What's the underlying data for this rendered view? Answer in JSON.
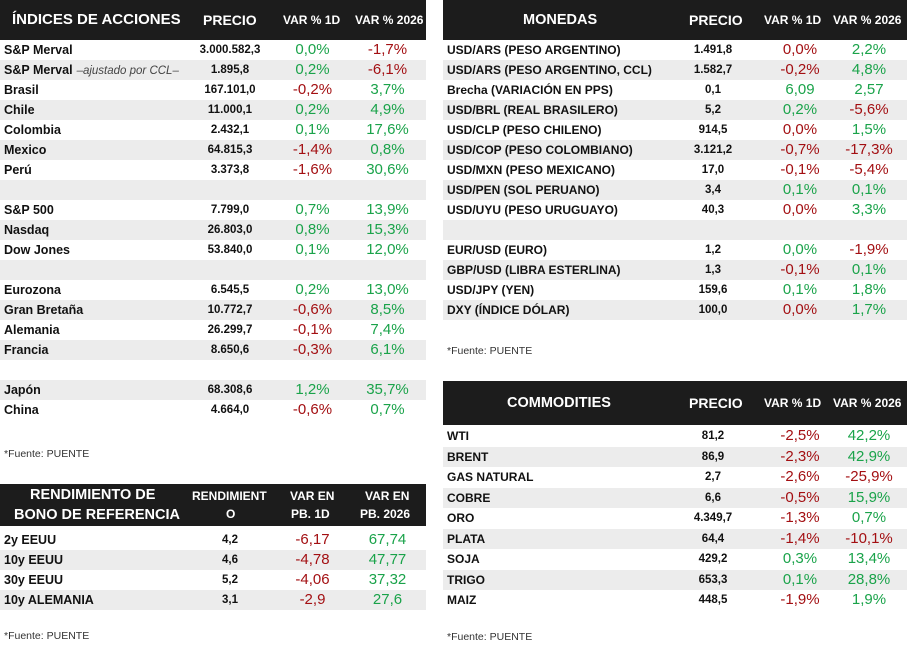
{
  "indices": {
    "headers": [
      "ÍNDICES DE ACCIONES",
      "PRECIO",
      "VAR % 1D",
      "VAR % 2026"
    ],
    "rows": [
      {
        "name": "S&P Merval",
        "note": "",
        "price": "3.000.582,3",
        "d1": "0,0%",
        "ytd": "-1,7%",
        "d1_sign": "pos",
        "ytd_sign": "neg"
      },
      {
        "name": "S&P Merval",
        "note": "–ajustado por CCL–",
        "price": "1.895,8",
        "d1": "0,2%",
        "ytd": "-6,1%",
        "d1_sign": "pos",
        "ytd_sign": "neg"
      },
      {
        "name": "Brasil",
        "note": "",
        "price": "167.101,0",
        "d1": "-0,2%",
        "ytd": "3,7%",
        "d1_sign": "neg",
        "ytd_sign": "pos"
      },
      {
        "name": "Chile",
        "note": "",
        "price": "11.000,1",
        "d1": "0,2%",
        "ytd": "4,9%",
        "d1_sign": "pos",
        "ytd_sign": "pos"
      },
      {
        "name": "Colombia",
        "note": "",
        "price": "2.432,1",
        "d1": "0,1%",
        "ytd": "17,6%",
        "d1_sign": "pos",
        "ytd_sign": "pos"
      },
      {
        "name": "Mexico",
        "note": "",
        "price": "64.815,3",
        "d1": "-1,4%",
        "ytd": "0,8%",
        "d1_sign": "neg",
        "ytd_sign": "pos"
      },
      {
        "name": "Perú",
        "note": "",
        "price": "3.373,8",
        "d1": "-1,6%",
        "ytd": "30,6%",
        "d1_sign": "neg",
        "ytd_sign": "pos"
      },
      {
        "blank": true
      },
      {
        "name": "S&P 500",
        "note": "",
        "price": "7.799,0",
        "d1": "0,7%",
        "ytd": "13,9%",
        "d1_sign": "pos",
        "ytd_sign": "pos"
      },
      {
        "name": "Nasdaq",
        "note": "",
        "price": "26.803,0",
        "d1": "0,8%",
        "ytd": "15,3%",
        "d1_sign": "pos",
        "ytd_sign": "pos"
      },
      {
        "name": "Dow Jones",
        "note": "",
        "price": "53.840,0",
        "d1": "0,1%",
        "ytd": "12,0%",
        "d1_sign": "pos",
        "ytd_sign": "pos"
      },
      {
        "blank": true
      },
      {
        "name": "Eurozona",
        "note": "",
        "price": "6.545,5",
        "d1": "0,2%",
        "ytd": "13,0%",
        "d1_sign": "pos",
        "ytd_sign": "pos"
      },
      {
        "name": "Gran Bretaña",
        "note": "",
        "price": "10.772,7",
        "d1": "-0,6%",
        "ytd": "8,5%",
        "d1_sign": "neg",
        "ytd_sign": "pos"
      },
      {
        "name": "Alemania",
        "note": "",
        "price": "26.299,7",
        "d1": "-0,1%",
        "ytd": "7,4%",
        "d1_sign": "neg",
        "ytd_sign": "pos"
      },
      {
        "name": "Francia",
        "note": "",
        "price": "8.650,6",
        "d1": "-0,3%",
        "ytd": "6,1%",
        "d1_sign": "neg",
        "ytd_sign": "pos"
      },
      {
        "blank": true
      },
      {
        "name": "Japón",
        "note": "",
        "price": "68.308,6",
        "d1": "1,2%",
        "ytd": "35,7%",
        "d1_sign": "pos",
        "ytd_sign": "pos"
      },
      {
        "name": "China",
        "note": "",
        "price": "4.664,0",
        "d1": "-0,6%",
        "ytd": "0,7%",
        "d1_sign": "neg",
        "ytd_sign": "pos"
      }
    ],
    "source": "*Fuente: PUENTE"
  },
  "bonds": {
    "headers": [
      "RENDIMIENTO DE\nBONO DE REFERENCIA",
      "RENDIMIENT\nO",
      "VAR EN\nPB. 1D",
      "VAR EN\nPB. 2026"
    ],
    "rows": [
      {
        "name": "2y EEUU",
        "price": "4,2",
        "d1": "-6,17",
        "ytd": "67,74",
        "d1_sign": "neg",
        "ytd_sign": "pos"
      },
      {
        "name": "10y EEUU",
        "price": "4,6",
        "d1": "-4,78",
        "ytd": "47,77",
        "d1_sign": "neg",
        "ytd_sign": "pos"
      },
      {
        "name": "30y EEUU",
        "price": "5,2",
        "d1": "-4,06",
        "ytd": "37,32",
        "d1_sign": "neg",
        "ytd_sign": "pos"
      },
      {
        "name": "10y ALEMANIA",
        "price": "3,1",
        "d1": "-2,9",
        "ytd": "27,6",
        "d1_sign": "neg",
        "ytd_sign": "pos"
      }
    ],
    "source": "*Fuente: PUENTE"
  },
  "currencies": {
    "headers": [
      "MONEDAS",
      "PRECIO",
      "VAR % 1D",
      "VAR % 2026"
    ],
    "rows": [
      {
        "name": "USD/ARS (PESO ARGENTINO)",
        "price": "1.491,8",
        "d1": "0,0%",
        "ytd": "2,2%",
        "d1_sign": "neg",
        "ytd_sign": "pos"
      },
      {
        "name": "USD/ARS (PESO ARGENTINO, CCL)",
        "price": "1.582,7",
        "d1": "-0,2%",
        "ytd": "4,8%",
        "d1_sign": "neg",
        "ytd_sign": "pos"
      },
      {
        "name": "Brecha (VARIACIÓN EN PPS)",
        "price": "0,1",
        "d1": "6,09",
        "ytd": "2,57",
        "d1_sign": "pos",
        "ytd_sign": "pos"
      },
      {
        "name": "USD/BRL (REAL BRASILERO)",
        "price": "5,2",
        "d1": "0,2%",
        "ytd": "-5,6%",
        "d1_sign": "pos",
        "ytd_sign": "neg"
      },
      {
        "name": "USD/CLP (PESO CHILENO)",
        "price": "914,5",
        "d1": "0,0%",
        "ytd": "1,5%",
        "d1_sign": "neg",
        "ytd_sign": "pos"
      },
      {
        "name": "USD/COP (PESO COLOMBIANO)",
        "price": "3.121,2",
        "d1": "-0,7%",
        "ytd": "-17,3%",
        "d1_sign": "neg",
        "ytd_sign": "neg"
      },
      {
        "name": "USD/MXN (PESO MEXICANO)",
        "price": "17,0",
        "d1": "-0,1%",
        "ytd": "-5,4%",
        "d1_sign": "neg",
        "ytd_sign": "neg"
      },
      {
        "name": "USD/PEN (SOL PERUANO)",
        "price": "3,4",
        "d1": "0,1%",
        "ytd": "0,1%",
        "d1_sign": "pos",
        "ytd_sign": "pos"
      },
      {
        "name": "USD/UYU (PESO URUGUAYO)",
        "price": "40,3",
        "d1": "0,0%",
        "ytd": "3,3%",
        "d1_sign": "neg",
        "ytd_sign": "pos"
      },
      {
        "blank": true
      },
      {
        "name": "EUR/USD (EURO)",
        "price": "1,2",
        "d1": "0,0%",
        "ytd": "-1,9%",
        "d1_sign": "pos",
        "ytd_sign": "neg"
      },
      {
        "name": "GBP/USD (LIBRA ESTERLINA)",
        "price": "1,3",
        "d1": "-0,1%",
        "ytd": "0,1%",
        "d1_sign": "neg",
        "ytd_sign": "pos"
      },
      {
        "name": "USD/JPY (YEN)",
        "price": "159,6",
        "d1": "0,1%",
        "ytd": "1,8%",
        "d1_sign": "pos",
        "ytd_sign": "pos"
      },
      {
        "name": "DXY (ÍNDICE DÓLAR)",
        "price": "100,0",
        "d1": "0,0%",
        "ytd": "1,7%",
        "d1_sign": "neg",
        "ytd_sign": "pos"
      }
    ],
    "source": "*Fuente: PUENTE"
  },
  "commodities": {
    "headers": [
      "COMMODITIES",
      "PRECIO",
      "VAR % 1D",
      "VAR % 2026"
    ],
    "rows": [
      {
        "name": "WTI",
        "price": "81,2",
        "d1": "-2,5%",
        "ytd": "42,2%",
        "d1_sign": "neg",
        "ytd_sign": "pos"
      },
      {
        "name": "BRENT",
        "price": "86,9",
        "d1": "-2,3%",
        "ytd": "42,9%",
        "d1_sign": "neg",
        "ytd_sign": "pos"
      },
      {
        "name": "GAS NATURAL",
        "price": "2,7",
        "d1": "-2,6%",
        "ytd": "-25,9%",
        "d1_sign": "neg",
        "ytd_sign": "neg"
      },
      {
        "name": "COBRE",
        "price": "6,6",
        "d1": "-0,5%",
        "ytd": "15,9%",
        "d1_sign": "neg",
        "ytd_sign": "pos"
      },
      {
        "name": "ORO",
        "price": "4.349,7",
        "d1": "-1,3%",
        "ytd": "0,7%",
        "d1_sign": "neg",
        "ytd_sign": "pos"
      },
      {
        "name": "PLATA",
        "price": "64,4",
        "d1": "-1,4%",
        "ytd": "-10,1%",
        "d1_sign": "neg",
        "ytd_sign": "neg"
      },
      {
        "name": "SOJA",
        "price": "429,2",
        "d1": "0,3%",
        "ytd": "13,4%",
        "d1_sign": "pos",
        "ytd_sign": "pos"
      },
      {
        "name": "TRIGO",
        "price": "653,3",
        "d1": "0,1%",
        "ytd": "28,8%",
        "d1_sign": "pos",
        "ytd_sign": "pos"
      },
      {
        "name": "MAIZ",
        "price": "448,5",
        "d1": "-1,9%",
        "ytd": "1,9%",
        "d1_sign": "neg",
        "ytd_sign": "pos"
      }
    ],
    "source": "*Fuente: PUENTE"
  },
  "colors": {
    "header_bg": "#1c1c1c",
    "positive": "#1aa34a",
    "negative": "#a30f12",
    "stripe": "#ececec"
  }
}
